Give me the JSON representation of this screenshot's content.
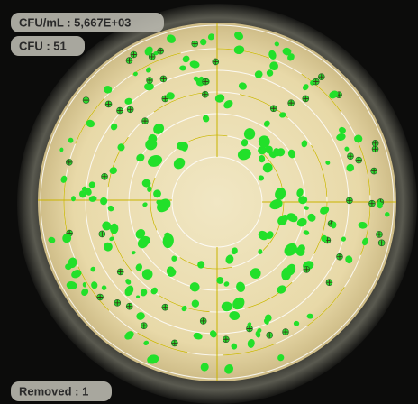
{
  "overlay": {
    "cfu_per_ml": "CFU/mL : 5,667E+03",
    "cfu": "CFU : 51",
    "removed": "Removed : 1"
  }
}
